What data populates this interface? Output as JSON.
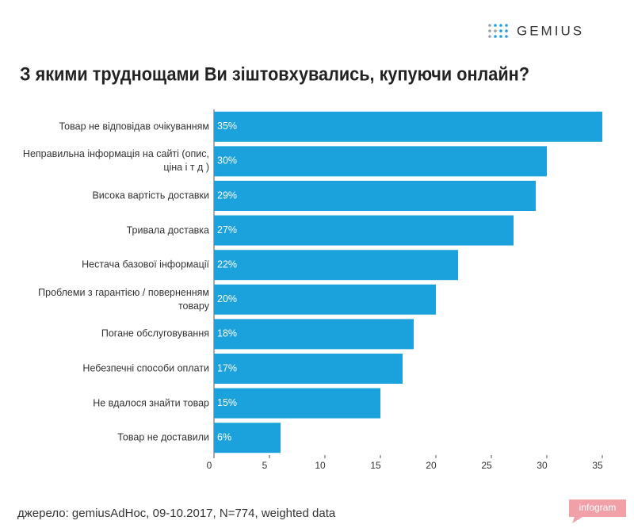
{
  "logo": "GEMIUS",
  "chart_data": {
    "type": "bar",
    "orientation": "horizontal",
    "title": "З якими труднощами Ви зіштовхувались, купуючи онлайн?",
    "categories": [
      "Товар не відповідав очікуванням",
      "Неправильна інформація на сайті (опис, ціна і т д )",
      "Висока вартість доставки",
      "Тривала доставка",
      "Нестача базової інформації",
      "Проблеми з гарантією / поверненням товару",
      "Погане обслуговування",
      "Небезпечні способи оплати",
      "Не вдалося знайти товар",
      "Товар не доставили"
    ],
    "values": [
      35,
      30,
      29,
      27,
      22,
      20,
      18,
      17,
      15,
      6
    ],
    "value_labels": [
      "35%",
      "30%",
      "29%",
      "27%",
      "22%",
      "20%",
      "18%",
      "17%",
      "15%",
      "6%"
    ],
    "color": "#1ba1dc",
    "xlim": [
      0,
      36
    ],
    "xticks": [
      0,
      5,
      10,
      15,
      20,
      25,
      30,
      35
    ]
  },
  "source": "джерело:  gemiusAdHoc, 09-10.2017, N=774, weighted data",
  "badge": "infogram"
}
